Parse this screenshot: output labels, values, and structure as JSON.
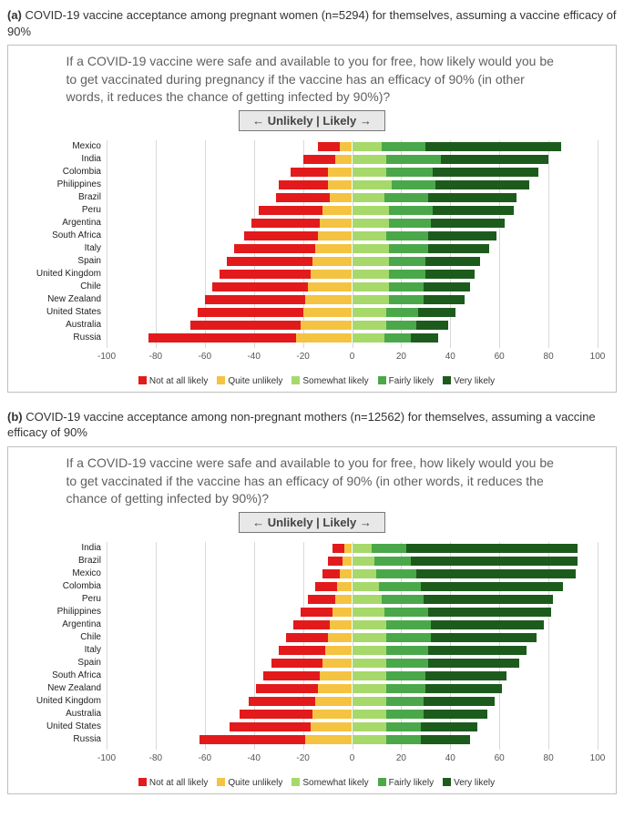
{
  "colors": {
    "not_at_all": "#e31a1c",
    "quite_unlikely": "#f5c342",
    "somewhat": "#a6d96a",
    "fairly": "#4aa84a",
    "very": "#1d5b1d",
    "grid": "#d9d9d9",
    "border": "#bfbfbf",
    "direction_bg": "#e8e8e8"
  },
  "axis": {
    "min": -100,
    "max": 100,
    "ticks": [
      -100,
      -80,
      -60,
      -40,
      -20,
      0,
      20,
      40,
      60,
      80,
      100
    ]
  },
  "legend": {
    "items": [
      {
        "label": "Not at all likely",
        "color": "not_at_all"
      },
      {
        "label": "Quite unlikely",
        "color": "quite_unlikely"
      },
      {
        "label": "Somewhat likely",
        "color": "somewhat"
      },
      {
        "label": "Fairly likely",
        "color": "fairly"
      },
      {
        "label": "Very likely",
        "color": "very"
      }
    ]
  },
  "direction_label": "← Unlikely | Likely →",
  "panel_a": {
    "letter": "(a)",
    "caption": "COVID-19 vaccine acceptance among pregnant women (n=5294) for themselves, assuming a vaccine efficacy of 90%",
    "question": "If a COVID-19 vaccine were safe and available to you for free, how likely would you be to get vaccinated during pregnancy if the vaccine has an efficacy of  90% (in other words, it reduces the chance of getting infected by 90%)?",
    "rows": [
      {
        "country": "Mexico",
        "neg": [
          -9,
          -5
        ],
        "pos": [
          12,
          18,
          55
        ]
      },
      {
        "country": "India",
        "neg": [
          -13,
          -7
        ],
        "pos": [
          14,
          22,
          44
        ]
      },
      {
        "country": "Colombia",
        "neg": [
          -15,
          -10
        ],
        "pos": [
          14,
          19,
          43
        ]
      },
      {
        "country": "Philippines",
        "neg": [
          -20,
          -10
        ],
        "pos": [
          16,
          18,
          38
        ]
      },
      {
        "country": "Brazil",
        "neg": [
          -22,
          -9
        ],
        "pos": [
          13,
          18,
          36
        ]
      },
      {
        "country": "Peru",
        "neg": [
          -26,
          -12
        ],
        "pos": [
          15,
          18,
          33
        ]
      },
      {
        "country": "Argentina",
        "neg": [
          -28,
          -13
        ],
        "pos": [
          15,
          17,
          30
        ]
      },
      {
        "country": "South Africa",
        "neg": [
          -30,
          -14
        ],
        "pos": [
          14,
          17,
          28
        ]
      },
      {
        "country": "Italy",
        "neg": [
          -33,
          -15
        ],
        "pos": [
          15,
          16,
          25
        ]
      },
      {
        "country": "Spain",
        "neg": [
          -35,
          -16
        ],
        "pos": [
          15,
          15,
          22
        ]
      },
      {
        "country": "United Kingdom",
        "neg": [
          -37,
          -17
        ],
        "pos": [
          15,
          15,
          20
        ]
      },
      {
        "country": "Chile",
        "neg": [
          -39,
          -18
        ],
        "pos": [
          15,
          14,
          19
        ]
      },
      {
        "country": "New Zealand",
        "neg": [
          -41,
          -19
        ],
        "pos": [
          15,
          14,
          17
        ]
      },
      {
        "country": "United States",
        "neg": [
          -43,
          -20
        ],
        "pos": [
          14,
          13,
          15
        ]
      },
      {
        "country": "Australia",
        "neg": [
          -45,
          -21
        ],
        "pos": [
          14,
          12,
          13
        ]
      },
      {
        "country": "Russia",
        "neg": [
          -60,
          -23
        ],
        "pos": [
          13,
          11,
          11
        ]
      }
    ]
  },
  "panel_b": {
    "letter": "(b)",
    "caption": "COVID-19 vaccine acceptance among non-pregnant mothers (n=12562) for themselves, assuming a vaccine efficacy of 90%",
    "question": "If a COVID-19 vaccine were safe and available to you for free, how likely would you be to get vaccinated if the vaccine has an efficacy of  90% (in other words, it reduces the chance of getting infected by 90%)?",
    "rows": [
      {
        "country": "India",
        "neg": [
          -5,
          -3
        ],
        "pos": [
          8,
          14,
          70
        ]
      },
      {
        "country": "Brazil",
        "neg": [
          -6,
          -4
        ],
        "pos": [
          9,
          15,
          68
        ]
      },
      {
        "country": "Mexico",
        "neg": [
          -7,
          -5
        ],
        "pos": [
          10,
          16,
          65
        ]
      },
      {
        "country": "Colombia",
        "neg": [
          -9,
          -6
        ],
        "pos": [
          11,
          17,
          58
        ]
      },
      {
        "country": "Peru",
        "neg": [
          -11,
          -7
        ],
        "pos": [
          12,
          17,
          53
        ]
      },
      {
        "country": "Philippines",
        "neg": [
          -13,
          -8
        ],
        "pos": [
          13,
          18,
          50
        ]
      },
      {
        "country": "Argentina",
        "neg": [
          -15,
          -9
        ],
        "pos": [
          14,
          18,
          46
        ]
      },
      {
        "country": "Chile",
        "neg": [
          -17,
          -10
        ],
        "pos": [
          14,
          18,
          43
        ]
      },
      {
        "country": "Italy",
        "neg": [
          -19,
          -11
        ],
        "pos": [
          14,
          17,
          40
        ]
      },
      {
        "country": "Spain",
        "neg": [
          -21,
          -12
        ],
        "pos": [
          14,
          17,
          37
        ]
      },
      {
        "country": "South Africa",
        "neg": [
          -23,
          -13
        ],
        "pos": [
          14,
          16,
          33
        ]
      },
      {
        "country": "New Zealand",
        "neg": [
          -25,
          -14
        ],
        "pos": [
          14,
          16,
          31
        ]
      },
      {
        "country": "United Kingdom",
        "neg": [
          -27,
          -15
        ],
        "pos": [
          14,
          15,
          29
        ]
      },
      {
        "country": "Australia",
        "neg": [
          -30,
          -16
        ],
        "pos": [
          14,
          15,
          26
        ]
      },
      {
        "country": "United States",
        "neg": [
          -33,
          -17
        ],
        "pos": [
          14,
          14,
          23
        ]
      },
      {
        "country": "Russia",
        "neg": [
          -43,
          -19
        ],
        "pos": [
          14,
          14,
          20
        ]
      }
    ]
  }
}
